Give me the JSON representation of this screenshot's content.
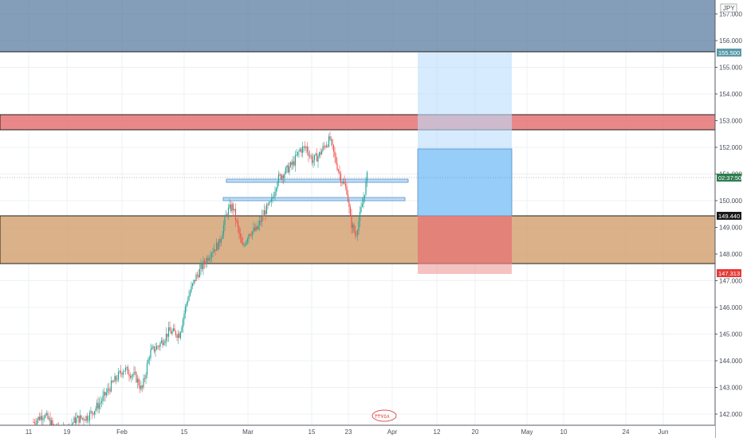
{
  "currency_label": "JPY",
  "y_axis": {
    "min": 141.7,
    "max": 157.9,
    "ticks": [
      "157.000",
      "156.000",
      "155.000",
      "154.000",
      "153.000",
      "152.000",
      "151.000",
      "150.000",
      "149.000",
      "148.000",
      "147.000",
      "146.000",
      "145.000",
      "144.000",
      "143.000",
      "142.000"
    ]
  },
  "x_axis": {
    "labels": [
      "11",
      "19",
      "Feb",
      "15",
      "Mar",
      "15",
      "23",
      "Apr",
      "12",
      "20",
      "May",
      "10",
      "24",
      "Jun"
    ]
  },
  "badges": {
    "line_top": "155.500",
    "countdown": "02:37:50",
    "zone_top": "149.440",
    "zone_low": "147.313"
  },
  "colors": {
    "up_candle": "#26a69a",
    "down_candle": "#ef5350",
    "top_zone": "#5b7ea1",
    "resistance_zone": "#e57373",
    "support_zone": "#d4a373",
    "target_zone": "#90caf9",
    "stop_zone": "#ef9a9a",
    "countdown_badge": "#2e7d4f",
    "stop_badge": "#e53935"
  },
  "watermark": "٣٣٧٥٨"
}
